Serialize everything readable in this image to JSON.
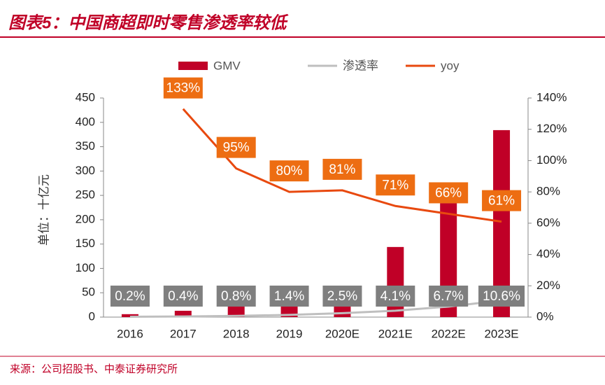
{
  "title": "图表5：中国商超即时零售渗透率较低",
  "source": "来源：公司招股书、中泰证券研究所",
  "chart_data": {
    "type": "bar-line",
    "y_label": "单位：十亿元",
    "categories": [
      "2016",
      "2017",
      "2018",
      "2019",
      "2020E",
      "2021E",
      "2022E",
      "2023E"
    ],
    "series": [
      {
        "name": "GMV",
        "type": "bar",
        "color": "#c00027",
        "values": [
          6,
          13,
          25,
          28,
          43,
          144,
          234,
          384
        ]
      },
      {
        "name": "渗透率",
        "type": "line",
        "axis": "y2",
        "color": "#bfbfbf",
        "values": [
          0.2,
          0.4,
          0.8,
          1.4,
          2.5,
          4.1,
          6.7,
          10.6
        ],
        "value_labels": [
          "0.2%",
          "0.4%",
          "0.8%",
          "1.4%",
          "2.5%",
          "4.1%",
          "6.7%",
          "10.6%"
        ],
        "label_color": "#7f7f7f"
      },
      {
        "name": "yoy",
        "type": "line",
        "axis": "y2",
        "color": "#e8490f",
        "values": [
          null,
          133,
          95,
          80,
          81,
          71,
          66,
          61
        ],
        "value_labels": [
          null,
          "133%",
          "95%",
          "80%",
          "81%",
          "71%",
          "66%",
          "61%"
        ],
        "label_color": "#ed6d12"
      }
    ],
    "ylim": [
      0,
      450
    ],
    "yticks": [
      0,
      50,
      100,
      150,
      200,
      250,
      300,
      350,
      400,
      450
    ],
    "y2lim": [
      0,
      140
    ],
    "y2ticks": [
      {
        "value": 0,
        "label": "0%"
      },
      {
        "value": 20,
        "label": "20%"
      },
      {
        "value": 40,
        "label": "40%"
      },
      {
        "value": 60,
        "label": "60%"
      },
      {
        "value": 80,
        "label": "80%"
      },
      {
        "value": 100,
        "label": "100%"
      },
      {
        "value": 120,
        "label": "120%"
      },
      {
        "value": 140,
        "label": "140%"
      }
    ]
  }
}
